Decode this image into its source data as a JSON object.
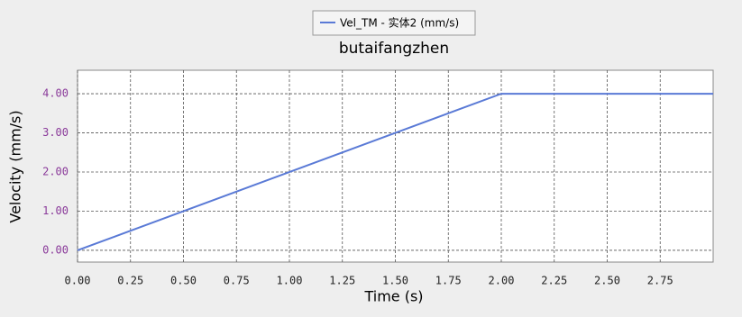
{
  "chart_data": {
    "type": "line",
    "title": "butaifangzhen",
    "xlabel": "Time (s)",
    "ylabel": "Velocity (mm/s)",
    "x": [
      0,
      2,
      3
    ],
    "series": [
      {
        "name": "Vel_TM  - 实体2 (mm/s)",
        "color": "#5a7ad6",
        "values": [
          0,
          4,
          4
        ]
      }
    ],
    "xlim": [
      0,
      3.0
    ],
    "ylim": [
      -0.3,
      4.6
    ],
    "xticks": [
      {
        "value": 0,
        "label": "0.00"
      },
      {
        "value": 0.25,
        "label": "0.25"
      },
      {
        "value": 0.5,
        "label": "0.50"
      },
      {
        "value": 0.75,
        "label": "0.75"
      },
      {
        "value": 1,
        "label": "1.00"
      },
      {
        "value": 1.25,
        "label": "1.25"
      },
      {
        "value": 1.5,
        "label": "1.50"
      },
      {
        "value": 1.75,
        "label": "1.75"
      },
      {
        "value": 2,
        "label": "2.00"
      },
      {
        "value": 2.25,
        "label": "2.25"
      },
      {
        "value": 2.5,
        "label": "2.50"
      },
      {
        "value": 2.75,
        "label": "2.75"
      }
    ],
    "yticks": [
      {
        "value": 0,
        "label": "0.00"
      },
      {
        "value": 1,
        "label": "1.00"
      },
      {
        "value": 2,
        "label": "2.00"
      },
      {
        "value": 3,
        "label": "3.00"
      },
      {
        "value": 4,
        "label": "4.00"
      }
    ],
    "grid": true,
    "legend": "top"
  }
}
